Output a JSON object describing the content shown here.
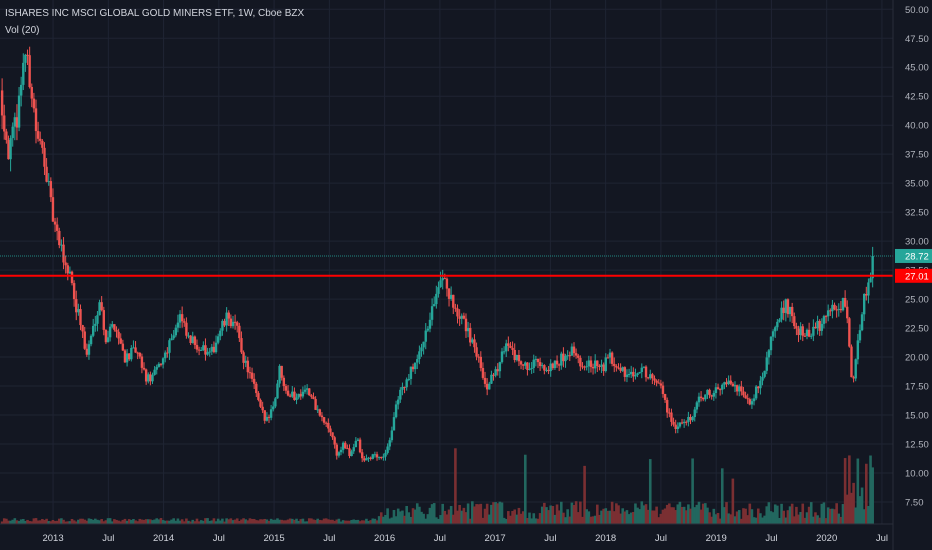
{
  "header": {
    "symbol_title": "ISHARES INC MSCI GLOBAL GOLD MINERS ETF, 1W, Cboe BZX",
    "volume_label": "Vol (20)"
  },
  "colors": {
    "background": "#131722",
    "grid": "#1f2433",
    "up": "#26a69a",
    "down": "#ef5350",
    "up_volume": "#22675f",
    "down_volume": "#7a2f32",
    "horizontal_line": "#ff0000",
    "price_line": "#26a69a"
  },
  "chart_data": {
    "type": "candlestick",
    "title": "ISHARES INC MSCI GLOBAL GOLD MINERS ETF, 1W, Cboe BZX",
    "interval": "1W",
    "exchange": "Cboe BZX",
    "y_axis": {
      "ticks": [
        7.5,
        10,
        12.5,
        15,
        17.5,
        20,
        22.5,
        25,
        27.5,
        30,
        32.5,
        35,
        37.5,
        40,
        42.5,
        45,
        47.5,
        50
      ],
      "tick_labels": [
        "7.50",
        "10.00",
        "12.50",
        "15.00",
        "17.50",
        "20.00",
        "22.50",
        "25.00",
        "27.50",
        "30.00",
        "32.50",
        "35.00",
        "37.50",
        "40.00",
        "42.50",
        "45.00",
        "47.50",
        "50.00"
      ],
      "range": [
        5.6,
        50.8
      ],
      "position": "right"
    },
    "x_axis": {
      "labels": [
        "2013",
        "Jul",
        "2014",
        "Jul",
        "2015",
        "Jul",
        "2016",
        "Jul",
        "2017",
        "Jul",
        "2018",
        "Jul",
        "2019",
        "Jul",
        "2020",
        "Jul"
      ],
      "label_dates": [
        2013.0,
        2013.5,
        2014.0,
        2014.5,
        2015.0,
        2015.5,
        2016.0,
        2016.5,
        2017.0,
        2017.5,
        2018.0,
        2018.5,
        2019.0,
        2019.5,
        2020.0,
        2020.5
      ],
      "range": [
        2012.52,
        2020.6
      ]
    },
    "horizontal_line": {
      "value": 27.01,
      "label": "27.01"
    },
    "last_price": {
      "value": 28.72,
      "label": "28.72"
    },
    "price_path": [
      [
        2012.52,
        43.0
      ],
      [
        2012.6,
        37.5
      ],
      [
        2012.68,
        41.0
      ],
      [
        2012.74,
        46.5
      ],
      [
        2012.8,
        43.5
      ],
      [
        2012.86,
        38.5
      ],
      [
        2012.92,
        37.5
      ],
      [
        2012.98,
        33.0
      ],
      [
        2013.03,
        30.5
      ],
      [
        2013.08,
        29.0
      ],
      [
        2013.13,
        27.5
      ],
      [
        2013.17,
        27.0
      ],
      [
        2013.19,
        25.0
      ],
      [
        2013.25,
        23.0
      ],
      [
        2013.3,
        20.0
      ],
      [
        2013.35,
        22.0
      ],
      [
        2013.42,
        25.0
      ],
      [
        2013.48,
        21.5
      ],
      [
        2013.55,
        23.0
      ],
      [
        2013.65,
        20.0
      ],
      [
        2013.75,
        20.5
      ],
      [
        2013.85,
        18.0
      ],
      [
        2013.92,
        18.5
      ],
      [
        2014.0,
        20.0
      ],
      [
        2014.08,
        22.0
      ],
      [
        2014.15,
        23.5
      ],
      [
        2014.22,
        21.5
      ],
      [
        2014.32,
        21.0
      ],
      [
        2014.42,
        20.0
      ],
      [
        2014.5,
        22.0
      ],
      [
        2014.58,
        23.5
      ],
      [
        2014.66,
        22.5
      ],
      [
        2014.72,
        20.0
      ],
      [
        2014.8,
        18.0
      ],
      [
        2014.86,
        16.0
      ],
      [
        2014.92,
        14.5
      ],
      [
        2015.0,
        16.0
      ],
      [
        2015.05,
        19.0
      ],
      [
        2015.12,
        17.0
      ],
      [
        2015.2,
        16.5
      ],
      [
        2015.28,
        17.5
      ],
      [
        2015.36,
        16.0
      ],
      [
        2015.44,
        14.5
      ],
      [
        2015.52,
        13.5
      ],
      [
        2015.57,
        11.5
      ],
      [
        2015.63,
        12.5
      ],
      [
        2015.68,
        11.5
      ],
      [
        2015.75,
        13.0
      ],
      [
        2015.8,
        11.0
      ],
      [
        2015.9,
        11.5
      ],
      [
        2016.0,
        11.5
      ],
      [
        2016.06,
        13.5
      ],
      [
        2016.12,
        16.5
      ],
      [
        2016.2,
        18.0
      ],
      [
        2016.3,
        20.0
      ],
      [
        2016.38,
        22.0
      ],
      [
        2016.45,
        25.0
      ],
      [
        2016.53,
        26.5
      ],
      [
        2016.6,
        25.0
      ],
      [
        2016.68,
        23.5
      ],
      [
        2016.76,
        22.0
      ],
      [
        2016.84,
        20.0
      ],
      [
        2016.92,
        17.5
      ],
      [
        2016.96,
        18.0
      ],
      [
        2017.02,
        19.0
      ],
      [
        2017.1,
        21.5
      ],
      [
        2017.18,
        20.0
      ],
      [
        2017.28,
        19.0
      ],
      [
        2017.38,
        20.0
      ],
      [
        2017.46,
        19.0
      ],
      [
        2017.54,
        19.5
      ],
      [
        2017.62,
        20.0
      ],
      [
        2017.7,
        20.5
      ],
      [
        2017.78,
        19.0
      ],
      [
        2017.86,
        19.5
      ],
      [
        2017.96,
        19.0
      ],
      [
        2018.04,
        20.0
      ],
      [
        2018.12,
        19.0
      ],
      [
        2018.2,
        18.5
      ],
      [
        2018.3,
        19.0
      ],
      [
        2018.4,
        18.5
      ],
      [
        2018.5,
        17.5
      ],
      [
        2018.56,
        15.5
      ],
      [
        2018.62,
        14.0
      ],
      [
        2018.7,
        14.5
      ],
      [
        2018.78,
        15.0
      ],
      [
        2018.86,
        16.5
      ],
      [
        2018.96,
        17.0
      ],
      [
        2019.04,
        17.5
      ],
      [
        2019.12,
        18.0
      ],
      [
        2019.22,
        17.0
      ],
      [
        2019.32,
        16.0
      ],
      [
        2019.42,
        18.5
      ],
      [
        2019.48,
        21.0
      ],
      [
        2019.56,
        23.5
      ],
      [
        2019.64,
        24.5
      ],
      [
        2019.72,
        22.5
      ],
      [
        2019.8,
        22.0
      ],
      [
        2019.9,
        22.5
      ],
      [
        2019.98,
        23.0
      ],
      [
        2020.05,
        24.5
      ],
      [
        2020.12,
        24.0
      ],
      [
        2020.16,
        25.5
      ],
      [
        2020.2,
        22.0
      ],
      [
        2020.23,
        17.0
      ],
      [
        2020.26,
        20.0
      ],
      [
        2020.3,
        22.5
      ],
      [
        2020.35,
        25.5
      ],
      [
        2020.4,
        27.5
      ],
      [
        2020.42,
        28.72
      ]
    ],
    "grid": true,
    "volume_indicator": "Vol (20)",
    "legend": "top-left"
  }
}
